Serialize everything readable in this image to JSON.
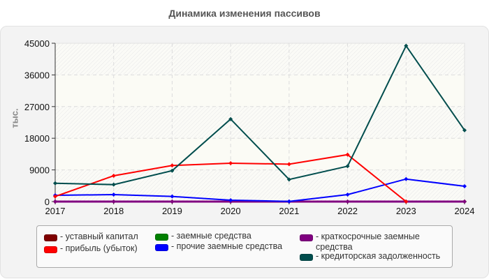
{
  "chart_data": {
    "type": "line",
    "title": "Динамика изменения пассивов",
    "xlabel": "",
    "ylabel": "тыс.",
    "x": [
      2017,
      2018,
      2019,
      2020,
      2021,
      2022,
      2023,
      2024
    ],
    "ylim": [
      0,
      45000
    ],
    "yticks": [
      0,
      9000,
      18000,
      27000,
      36000,
      45000
    ],
    "grid": true,
    "legend_position": "bottom",
    "series": [
      {
        "name": "уставный капитал",
        "color": "#7f0000",
        "values": [
          10,
          10,
          10,
          10,
          10,
          10,
          10,
          10
        ]
      },
      {
        "name": "прибыль (убыток)",
        "color": "#ff0000",
        "values": [
          1450,
          7340,
          10250,
          10900,
          10640,
          13340,
          0,
          null
        ]
      },
      {
        "name": "заемные средства",
        "color": "#008000",
        "values": [
          0,
          0,
          0,
          0,
          0,
          0,
          0,
          0
        ]
      },
      {
        "name": "прочие заемные средства",
        "color": "#0000ff",
        "values": [
          1780,
          1980,
          1450,
          400,
          60,
          1980,
          6400,
          4360
        ]
      },
      {
        "name": "краткосрочные заемные средства",
        "color": "#800080",
        "values": [
          0,
          0,
          0,
          0,
          0,
          0,
          0,
          0
        ]
      },
      {
        "name": "кредиторская задолженность",
        "color": "#004d4d",
        "values": [
          5210,
          4820,
          8780,
          23450,
          6280,
          10050,
          44270,
          20280
        ]
      }
    ]
  },
  "legend": {
    "items": [
      {
        "label": "- уставный капитал",
        "color": "#7f0000"
      },
      {
        "label": "- прибыль (убыток)",
        "color": "#ff0000"
      },
      {
        "label": "- заемные средства",
        "color": "#008000"
      },
      {
        "label": "- прочие заемные средства",
        "color": "#0000ff"
      },
      {
        "label": "- краткосрочные заемные средства",
        "color": "#800080"
      },
      {
        "label": "- кредиторская задолженность",
        "color": "#004d4d"
      }
    ]
  }
}
